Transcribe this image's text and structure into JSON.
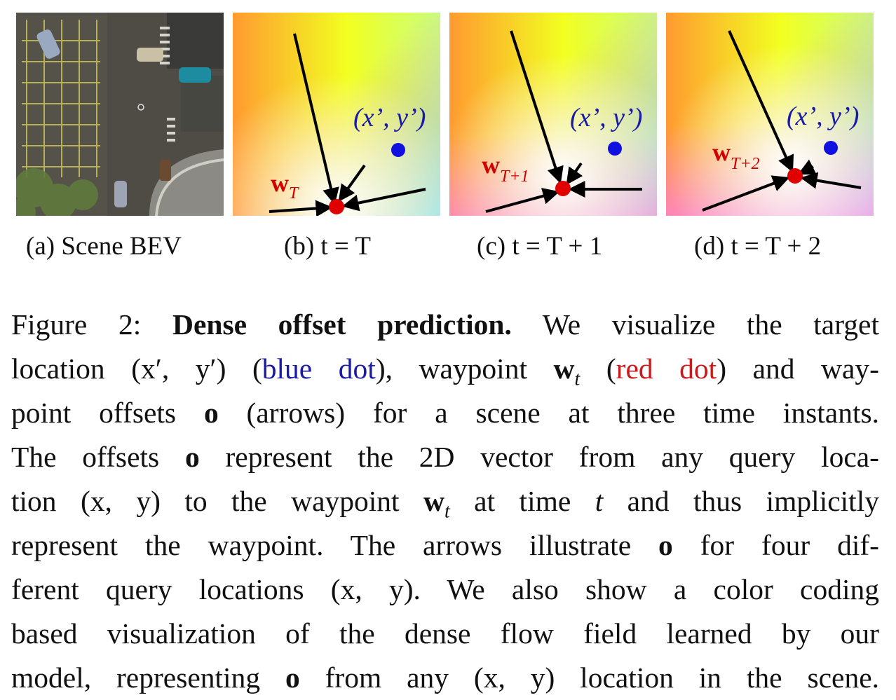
{
  "panels": [
    {
      "id": "a",
      "subcaption": "(a) Scene BEV"
    },
    {
      "id": "b",
      "subcaption": "(b) t = T",
      "waypoint_label": "w",
      "waypoint_sub": "T",
      "target_label": "(x’, y’)"
    },
    {
      "id": "c",
      "subcaption": "(c) t = T + 1",
      "waypoint_label": "w",
      "waypoint_sub": "T+1",
      "target_label": "(x’, y’)"
    },
    {
      "id": "d",
      "subcaption": "(d) t = T + 2",
      "waypoint_label": "w",
      "waypoint_sub": "T+2",
      "target_label": "(x’, y’)"
    }
  ],
  "caption": {
    "lines": [
      [
        "Figure 2: ",
        "Dense offset prediction.",
        " We visualize the target"
      ],
      [
        "location (x′, y′) (",
        "blue dot",
        "), waypoint ",
        "w",
        "t",
        " (",
        "red dot",
        ") and way-"
      ],
      [
        "point offsets ",
        "o",
        " (arrows) for a scene at three time instants."
      ],
      [
        "The offsets ",
        "o",
        " represent the 2D vector from any query loca-"
      ],
      [
        "tion (x, y) to the waypoint ",
        "w",
        "t",
        " at time ",
        "t",
        " and thus implicitly"
      ],
      [
        "represent the waypoint. The arrows illustrate ",
        "o",
        " for four dif-"
      ],
      [
        "ferent query locations (x, y). We also show a color coding"
      ],
      [
        "based visualization of the dense flow field learned by our"
      ],
      [
        "model, representing ",
        "o",
        " from any (x, y) location in the scene."
      ]
    ]
  },
  "colors": {
    "target_dot": "#1010e0",
    "waypoint_dot": "#e00000",
    "blue_text": "#1a1aa8",
    "red_text": "#cc1a1a"
  }
}
